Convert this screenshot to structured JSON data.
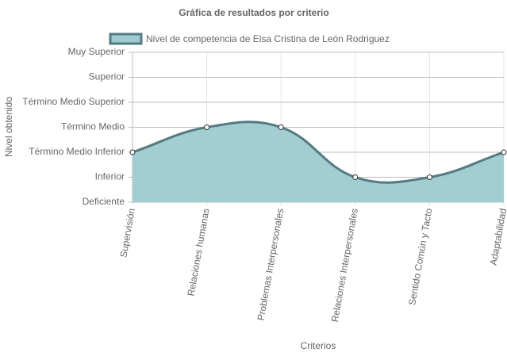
{
  "chart_data": {
    "type": "area",
    "title": "Gráfica de resultados por criterio",
    "x_label": "Criterios",
    "y_label": "Nivel obtenido",
    "categories": [
      "Supervisión",
      "Relaciones humanas",
      "Problemas Interpersonales",
      "Relaciones Interpersonales",
      "Sentido Común y Tacto",
      "Adaptabilidad"
    ],
    "series": [
      {
        "name": "Nivel de competencia de Elsa Cristina de León Rodriguez",
        "color": "#547a82",
        "fill": "#9ecbcf",
        "values": [
          2,
          3,
          3,
          1,
          1,
          2
        ]
      }
    ],
    "ylim": [
      0,
      6
    ],
    "yticks": [
      {
        "value": 0,
        "label": "Deficiente"
      },
      {
        "value": 1,
        "label": "Inferior"
      },
      {
        "value": 2,
        "label": "Término Medio Inferior"
      },
      {
        "value": 3,
        "label": "Término Medio"
      },
      {
        "value": 4,
        "label": "Término Medio Superior"
      },
      {
        "value": 5,
        "label": "Superior"
      },
      {
        "value": 6,
        "label": "Muy Superior"
      }
    ],
    "grid": true,
    "legend": "top"
  }
}
